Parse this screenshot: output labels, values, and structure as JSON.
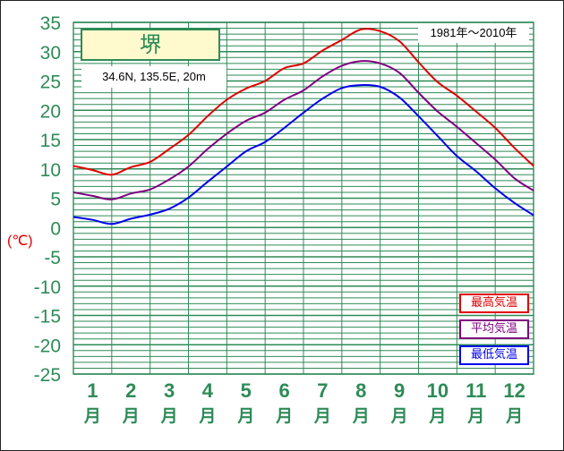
{
  "station": "堺",
  "location": "34.6N,  135.5E,  20m",
  "period": "1981年〜2010年",
  "unit_label": "(℃)",
  "colors": {
    "grid": "#2e8b57",
    "max": "#e00000",
    "mean": "#800080",
    "min": "#0000ee",
    "title_bg": "#fffacd"
  },
  "chart_data": {
    "type": "line",
    "title": "堺",
    "x": [
      1,
      2,
      3,
      4,
      5,
      6,
      7,
      8,
      9,
      10,
      11,
      12
    ],
    "categories": [
      "1",
      "2",
      "3",
      "4",
      "5",
      "6",
      "7",
      "8",
      "9",
      "10",
      "11",
      "12"
    ],
    "xlabel": "月",
    "ylabel": "(℃)",
    "ylim": [
      -25,
      35
    ],
    "yticks": [
      35,
      30,
      25,
      20,
      15,
      10,
      5,
      0,
      -5,
      -10,
      -15,
      -20,
      -25
    ],
    "grid": true,
    "legend_position": "bottom-right",
    "series": [
      {
        "name": "最高気温",
        "color": "#e00000",
        "x": [
          0.0,
          0.5,
          1.0,
          1.5,
          2.0,
          2.5,
          3.0,
          3.5,
          4.0,
          4.5,
          5.0,
          5.5,
          6.0,
          6.5,
          7.0,
          7.5,
          8.0,
          8.5,
          9.0,
          9.5,
          10.0,
          10.5,
          11.0,
          11.5,
          12.0
        ],
        "values": [
          10.5,
          9.8,
          9.0,
          10.3,
          11.2,
          13.4,
          15.8,
          19.0,
          21.8,
          23.7,
          25.0,
          27.2,
          28.0,
          30.2,
          32.0,
          33.8,
          33.5,
          31.8,
          28.2,
          24.8,
          22.5,
          19.8,
          17.0,
          13.6,
          10.5
        ]
      },
      {
        "name": "平均気温",
        "color": "#800080",
        "x": [
          0.0,
          0.5,
          1.0,
          1.5,
          2.0,
          2.5,
          3.0,
          3.5,
          4.0,
          4.5,
          5.0,
          5.5,
          6.0,
          6.5,
          7.0,
          7.5,
          8.0,
          8.5,
          9.0,
          9.5,
          10.0,
          10.5,
          11.0,
          11.5,
          12.0
        ],
        "values": [
          6.0,
          5.4,
          4.8,
          5.8,
          6.5,
          8.2,
          10.4,
          13.4,
          16.0,
          18.2,
          19.6,
          21.8,
          23.4,
          25.8,
          27.6,
          28.4,
          28.0,
          26.4,
          23.0,
          19.8,
          17.2,
          14.4,
          11.6,
          8.4,
          6.3
        ]
      },
      {
        "name": "最低気温",
        "color": "#0000ee",
        "x": [
          0.0,
          0.5,
          1.0,
          1.5,
          2.0,
          2.5,
          3.0,
          3.5,
          4.0,
          4.5,
          5.0,
          5.5,
          6.0,
          6.5,
          7.0,
          7.5,
          8.0,
          8.5,
          9.0,
          9.5,
          10.0,
          10.5,
          11.0,
          11.5,
          12.0
        ],
        "values": [
          1.8,
          1.3,
          0.6,
          1.5,
          2.2,
          3.2,
          5.1,
          7.8,
          10.4,
          13.0,
          14.6,
          17.0,
          19.6,
          22.0,
          23.8,
          24.3,
          24.0,
          22.2,
          19.0,
          15.6,
          12.2,
          9.6,
          6.7,
          4.2,
          2.1
        ]
      }
    ]
  }
}
